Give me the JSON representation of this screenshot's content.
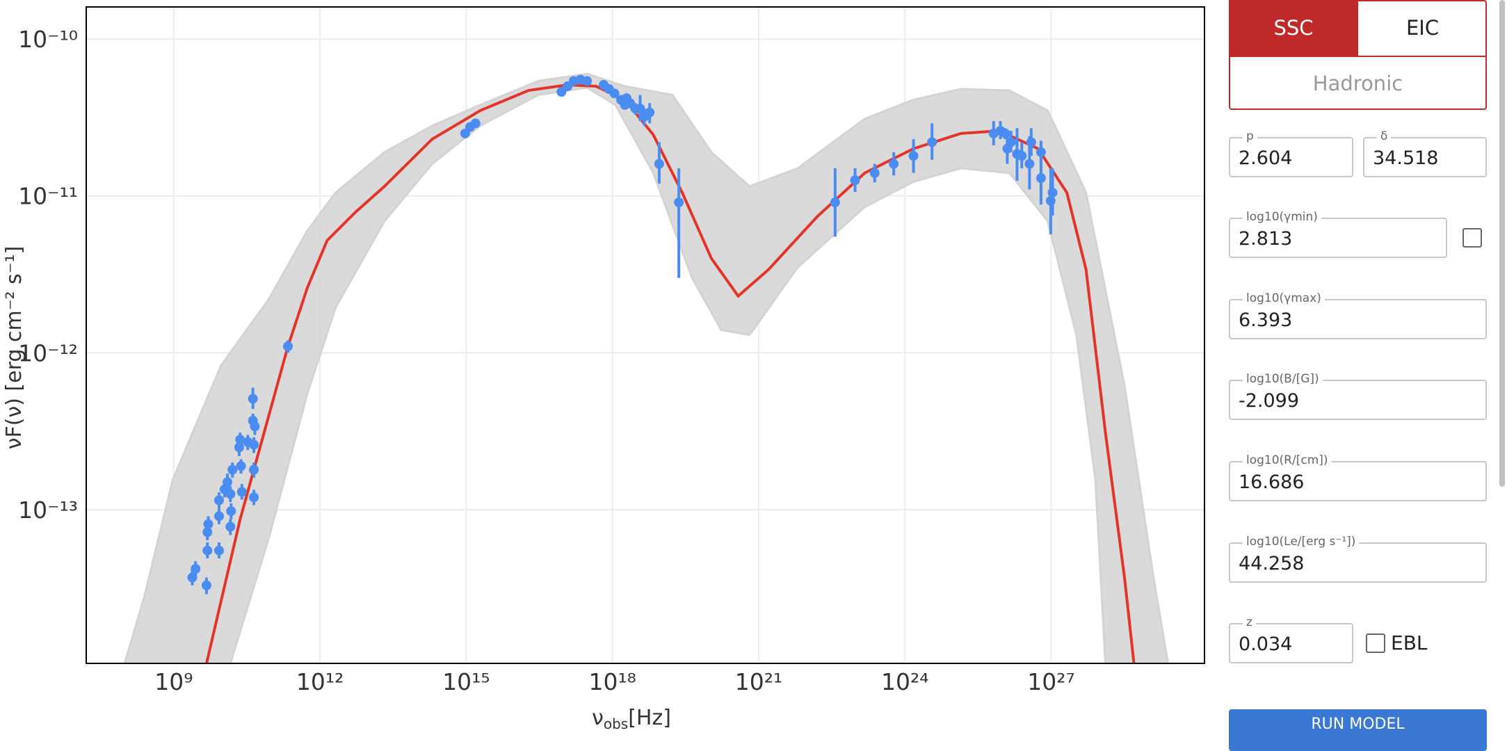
{
  "chart_data": {
    "type": "scatter",
    "log_x": true,
    "log_y": true,
    "grid": true,
    "x_label": {
      "symbol": "ν",
      "subscript": "obs",
      "unit": "[Hz]"
    },
    "y_label": "νF(ν) [erg cm⁻² s⁻¹]",
    "xlim": [
      16000000.0,
      1.4e+30
    ],
    "ylim": [
      1.05e-14,
      1.6e-10
    ],
    "xticks": [
      {
        "value": 1000000000.0,
        "label": "10⁹"
      },
      {
        "value": 1000000000000.0,
        "label": "10¹²"
      },
      {
        "value": 1000000000000000.0,
        "label": "10¹⁵"
      },
      {
        "value": 1e+18,
        "label": "10¹⁸"
      },
      {
        "value": 1e+21,
        "label": "10²¹"
      },
      {
        "value": 1e+24,
        "label": "10²⁴"
      },
      {
        "value": 1e+27,
        "label": "10²⁷"
      }
    ],
    "yticks": [
      {
        "value": 1e-13,
        "label": "10⁻¹³"
      },
      {
        "value": 1e-12,
        "label": "10⁻¹²"
      },
      {
        "value": 1e-11,
        "label": "10⁻¹¹"
      },
      {
        "value": 1e-10,
        "label": "10⁻¹⁰"
      }
    ],
    "band": {
      "color": "#d3d3d3",
      "upper": {
        "x": [
          98000000.0,
          250000000.0,
          950000000.0,
          9300000000.0,
          89000000000.0,
          550000000000.0,
          2100000000000.0,
          21000000000000.0,
          200000000000000.0,
          1950000000000000.0,
          3e+16,
          3e+17,
          1.8e+18,
          1.7e+19,
          1.07e+20,
          6.5e+20,
          6.3e+21,
          1.5e+23,
          1.5e+24,
          1.4e+25,
          1.4e+26,
          8.5e+26,
          5.2e+27,
          3.2e+28,
          1.26e+29,
          2.5e+29
        ],
        "values": [
          1.05e-14,
          2.8e-14,
          1.55e-13,
          8.3e-13,
          2.2e-12,
          6e-12,
          1.05e-11,
          1.9e-11,
          2.8e-11,
          3.8e-11,
          5.4e-11,
          6e-11,
          5e-11,
          4.4e-11,
          1.9e-11,
          1.15e-11,
          1.5e-11,
          3.1e-11,
          4.1e-11,
          4.8e-11,
          4.7e-11,
          3.5e-11,
          1.05e-11,
          6.2e-13,
          3.7e-14,
          1.05e-14
        ]
      },
      "lower": {
        "x": [
          14500000000.0,
          89000000000.0,
          550000000000.0,
          2100000000000.0,
          21000000000000.0,
          200000000000000.0,
          1950000000000000.0,
          3e+16,
          3e+17,
          1.15e+18,
          6.9e+18,
          4.3e+19,
          1.7e+20,
          6.5e+20,
          6.3e+21,
          1.5e+23,
          1.5e+24,
          1.4e+25,
          1.4e+26,
          8.5e+26,
          3.3e+27,
          8.1e+27,
          1.3e+28
        ],
        "values": [
          1.05e-14,
          6.6e-14,
          5.5e-13,
          1.95e-12,
          6.9e-12,
          1.6e-11,
          2.8e-11,
          4.4e-11,
          4.9e-11,
          3.8e-11,
          1.4e-11,
          3e-12,
          1.4e-12,
          1.3e-12,
          3.5e-12,
          8.5e-12,
          1.23e-11,
          1.5e-11,
          1.4e-11,
          6.9e-12,
          1.3e-12,
          1.55e-13,
          1.05e-14
        ]
      }
    },
    "model": {
      "color": "#e3342a",
      "x": [
        4700000000.0,
        23000000000.0,
        220000000000.0,
        550000000000.0,
        1400000000000.0,
        5400000000000.0,
        21000000000000.0,
        200000000000000.0,
        1950000000000000.0,
        1.9e+16,
        1.2e+17,
        4.6e+17,
        1.8e+18,
        6.9e+18,
        2.7e+19,
        1.07e+20,
        3.8e+20,
        1.6e+21,
        1.6e+22,
        1.5e+23,
        1.5e+24,
        1.4e+25,
        8.7e+25,
        5.4e+26,
        2.1e+27,
        5.2e+27,
        1.3e+28,
        3.2e+28,
        5e+28
      ],
      "values": [
        1.05e-14,
        8.7e-14,
        1.1e-12,
        2.6e-12,
        5.2e-12,
        7.9e-12,
        1.15e-11,
        2.3e-11,
        3.5e-11,
        4.7e-11,
        5.1e-11,
        5e-11,
        4.1e-11,
        2.45e-11,
        1.05e-11,
        4e-12,
        2.3e-12,
        3.4e-12,
        7.4e-12,
        1.4e-11,
        2e-11,
        2.5e-11,
        2.6e-11,
        2e-11,
        1.05e-11,
        3.4e-12,
        3.1e-13,
        3.7e-14,
        1.05e-14
      ]
    },
    "points": {
      "color": "#4a8cf0",
      "x": [
        2400000000.0,
        2800000000.0,
        4700000000.0,
        4900000000.0,
        4900000000.0,
        5100000000.0,
        8500000000.0,
        8500000000.0,
        8500000000.0,
        11000000000.0,
        12600000000.0,
        14500000000.0,
        14500000000.0,
        15000000000.0,
        16000000000.0,
        22000000000.0,
        23000000000.0,
        24000000000.0,
        25000000000.0,
        33000000000.0,
        42000000000.0,
        42000000000.0,
        44000000000.0,
        44000000000.0,
        44000000000.0,
        46000000000.0,
        220000000000.0,
        950000000000000.0,
        1200000000000000.0,
        1550000000000000.0,
        9e+16,
        1.2e+17,
        1.6e+17,
        2.2e+17,
        3e+17,
        6.6e+17,
        8.5e+17,
        1.1e+18,
        1.5e+18,
        1.95e+18,
        1.8e+18,
        2.3e+18,
        2.95e+18,
        3.7e+18,
        4.5e+18,
        5.8e+18,
        9.1e+18,
        2.3e+19,
        3.7e+22,
        9.5e+22,
        2.4e+23,
        5.9e+23,
        1.5e+24,
        3.6e+24,
        6.6e+25,
        9.1e+25,
        1.15e+26,
        1.26e+26,
        1.5e+26,
        2e+26,
        2.5e+26,
        3.6e+26,
        3.9e+26,
        6.2e+26,
        6.2e+26,
        9.8e+26,
        1.07e+27
      ],
      "values": [
        3.7e-14,
        4.2e-14,
        3.3e-14,
        5.5e-14,
        7.2e-14,
        8.1e-14,
        5.5e-14,
        9.1e-14,
        1.15e-13,
        1.35e-13,
        1.5e-13,
        1.26e-13,
        7.8e-14,
        9.8e-14,
        1.8e-13,
        2.5e-13,
        2.8e-13,
        1.9e-13,
        1.3e-13,
        2.7e-13,
        5.1e-13,
        3.7e-13,
        2.6e-13,
        1.8e-13,
        1.2e-13,
        3.4e-13,
        1.1e-12,
        2.5e-11,
        2.75e-11,
        2.9e-11,
        4.6e-11,
        5e-11,
        5.4e-11,
        5.5e-11,
        5.4e-11,
        5.1e-11,
        4.8e-11,
        4.5e-11,
        4.1e-11,
        4.2e-11,
        3.8e-11,
        3.9e-11,
        3.6e-11,
        3.6e-11,
        3.2e-11,
        3.4e-11,
        1.6e-11,
        9.1e-12,
        9.1e-12,
        1.26e-11,
        1.4e-11,
        1.6e-11,
        1.8e-11,
        2.2e-11,
        2.5e-11,
        2.6e-11,
        2.5e-11,
        2e-11,
        2.2e-11,
        1.85e-11,
        1.8e-11,
        1.6e-11,
        2.2e-11,
        1.3e-11,
        1.9e-11,
        9.3e-12,
        1.05e-11
      ],
      "y_low": [
        3.3e-14,
        3.7e-14,
        2.9e-14,
        4.9e-14,
        6.4e-14,
        7.2e-14,
        4.9e-14,
        8.1e-14,
        1.02e-13,
        1.2e-13,
        1.35e-13,
        1.12e-13,
        6.9e-14,
        8.7e-14,
        1.6e-13,
        2.2e-13,
        2.5e-13,
        1.7e-13,
        1.16e-13,
        2.4e-13,
        4.4e-13,
        3.3e-13,
        2.3e-13,
        1.6e-13,
        1.07e-13,
        3e-13,
        1e-12,
        2.35e-11,
        2.6e-11,
        2.75e-11,
        4.4e-11,
        4.8e-11,
        5.2e-11,
        5.3e-11,
        5.2e-11,
        4.9e-11,
        4.6e-11,
        4.3e-11,
        3.9e-11,
        4e-11,
        3.6e-11,
        3.7e-11,
        3.3e-11,
        3e-11,
        2.8e-11,
        2.9e-11,
        1.2e-11,
        3e-12,
        5.5e-12,
        1.06e-11,
        1.22e-11,
        1.35e-11,
        1.4e-11,
        1.7e-11,
        2.1e-11,
        2.3e-11,
        2.3e-11,
        1.6e-11,
        1.9e-11,
        1.25e-11,
        1.5e-11,
        1.1e-11,
        1.8e-11,
        8.8e-12,
        1.6e-11,
        5.7e-12,
        7.5e-12
      ],
      "y_high": [
        4.1e-14,
        4.7e-14,
        3.7e-14,
        6.2e-14,
        8.1e-14,
        9.1e-14,
        6.2e-14,
        1.02e-13,
        1.29e-13,
        1.5e-13,
        1.7e-13,
        1.41e-13,
        8.7e-14,
        1.1e-13,
        2e-13,
        2.8e-13,
        3.1e-13,
        2.1e-13,
        1.46e-13,
        3e-13,
        6e-13,
        4.1e-13,
        2.9e-13,
        2e-13,
        1.34e-13,
        3.8e-13,
        1.2e-12,
        2.65e-11,
        2.9e-11,
        3.05e-11,
        4.8e-11,
        5.2e-11,
        5.6e-11,
        5.7e-11,
        5.6e-11,
        5.3e-11,
        5e-11,
        4.7e-11,
        4.3e-11,
        4.4e-11,
        4e-11,
        4.1e-11,
        3.9e-11,
        4.4e-11,
        3.6e-11,
        3.9e-11,
        2.2e-11,
        1.5e-11,
        1.5e-11,
        1.5e-11,
        1.6e-11,
        1.9e-11,
        2.3e-11,
        2.9e-11,
        3e-11,
        3e-11,
        2.7e-11,
        2.6e-11,
        2.6e-11,
        2.7e-11,
        2.2e-11,
        2.4e-11,
        2.7e-11,
        1.9e-11,
        2.25e-11,
        1.5e-11,
        1.5e-11
      ]
    }
  },
  "controls": {
    "model_buttons": [
      "SSC",
      "EIC",
      "Hadronic"
    ],
    "active_button": 0,
    "active_color": "#c0292a",
    "fields": [
      {
        "label": "p",
        "value": "2.604"
      },
      {
        "label": "δ",
        "value": "34.518"
      },
      {
        "label": "log10(γmin)",
        "value": "2.813"
      },
      {
        "label": "log10(γmax)",
        "value": "6.393"
      },
      {
        "label": "log10(B/[G])",
        "value": "-2.099"
      },
      {
        "label": "log10(R/[cm])",
        "value": "16.686"
      },
      {
        "label": "log10(Le/[erg s⁻¹])",
        "value": "44.258"
      },
      {
        "label": "z",
        "value": "0.034"
      }
    ],
    "ebl_label": "EBL",
    "run_button": "RUN MODEL",
    "run_color": "#3a78d4"
  }
}
